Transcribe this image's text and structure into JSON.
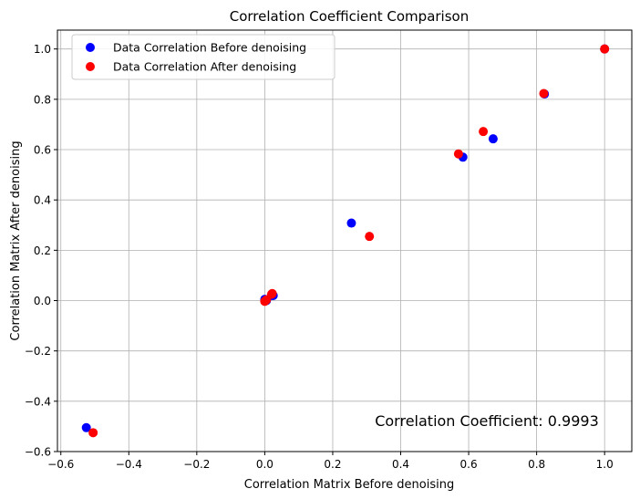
{
  "chart_data": {
    "type": "scatter",
    "title": "Correlation Coefficient Comparison",
    "xlabel": "Correlation Matrix Before denoising",
    "ylabel": "Correlation Matrix After denoising",
    "xlim": [
      -0.61,
      1.08
    ],
    "ylim": [
      -0.6,
      1.075
    ],
    "xticks": [
      -0.6,
      -0.4,
      -0.2,
      0.0,
      0.2,
      0.4,
      0.6,
      0.8,
      1.0
    ],
    "xtick_labels": [
      "−0.6",
      "−0.4",
      "−0.2",
      "0.0",
      "0.2",
      "0.4",
      "0.6",
      "0.8",
      "1.0"
    ],
    "yticks": [
      -0.6,
      -0.4,
      -0.2,
      0.0,
      0.2,
      0.4,
      0.6,
      0.8,
      1.0
    ],
    "ytick_labels": [
      "−0.6",
      "−0.4",
      "−0.2",
      "0.0",
      "0.2",
      "0.4",
      "0.6",
      "0.8",
      "1.0"
    ],
    "grid": true,
    "legend_position": "top-left",
    "series": [
      {
        "name": "Data Correlation Before denoising",
        "color": "#0000ff",
        "points": [
          {
            "x": -0.525,
            "y": -0.505
          },
          {
            "x": 0.0,
            "y": 0.005
          },
          {
            "x": 0.005,
            "y": 0.0
          },
          {
            "x": 0.02,
            "y": 0.02
          },
          {
            "x": 0.025,
            "y": 0.02
          },
          {
            "x": 0.255,
            "y": 0.308
          },
          {
            "x": 0.583,
            "y": 0.57
          },
          {
            "x": 0.672,
            "y": 0.643
          },
          {
            "x": 0.823,
            "y": 0.821
          },
          {
            "x": 1.0,
            "y": 1.0
          }
        ]
      },
      {
        "name": "Data Correlation After denoising",
        "color": "#ff0000",
        "points": [
          {
            "x": -0.505,
            "y": -0.525
          },
          {
            "x": 0.0,
            "y": -0.003
          },
          {
            "x": 0.005,
            "y": 0.003
          },
          {
            "x": 0.02,
            "y": 0.025
          },
          {
            "x": 0.022,
            "y": 0.028
          },
          {
            "x": 0.308,
            "y": 0.255
          },
          {
            "x": 0.57,
            "y": 0.583
          },
          {
            "x": 0.643,
            "y": 0.672
          },
          {
            "x": 0.821,
            "y": 0.823
          },
          {
            "x": 1.0,
            "y": 1.0
          }
        ]
      }
    ],
    "annotation": "Correlation Coefficient: 0.9993"
  }
}
